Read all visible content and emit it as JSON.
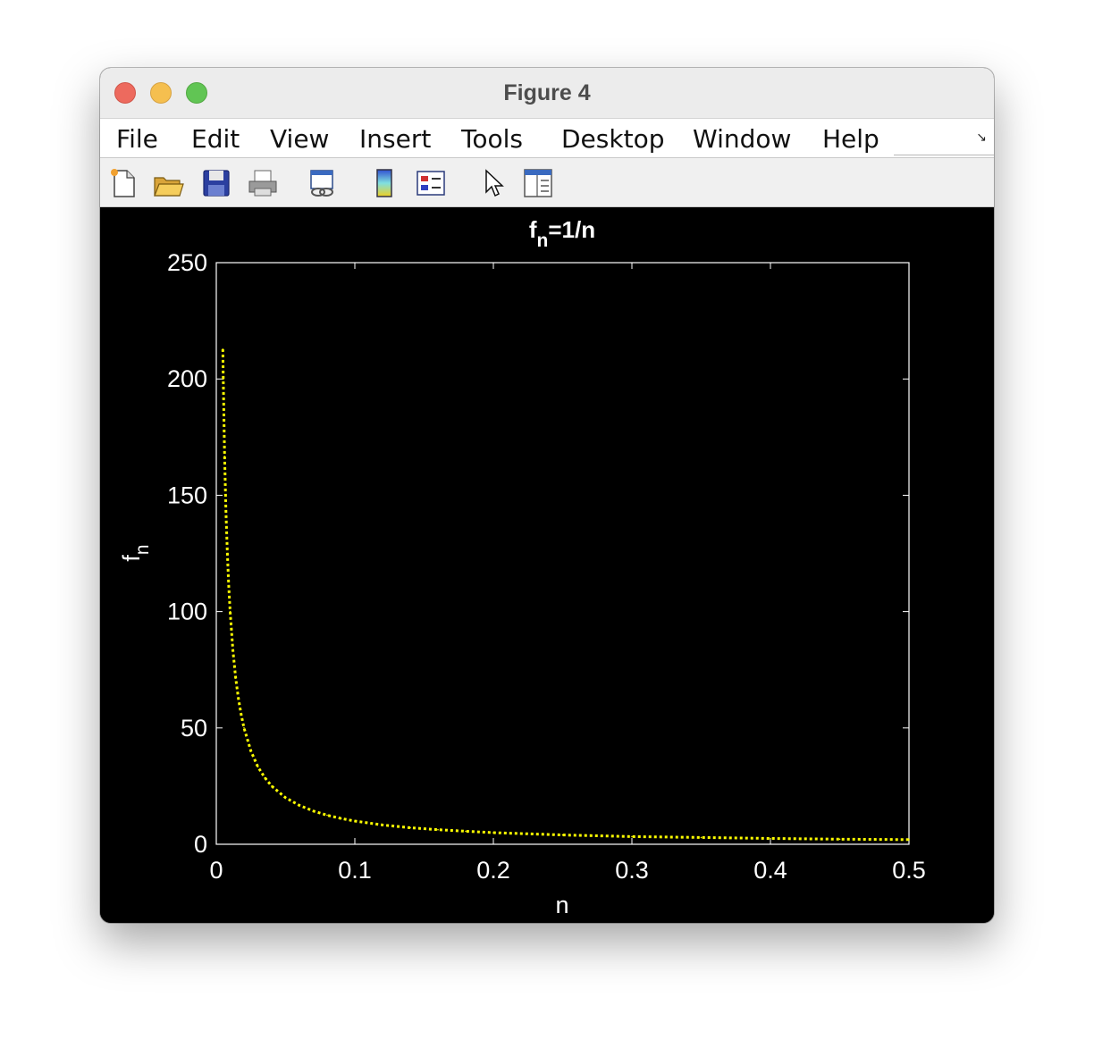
{
  "window": {
    "title": "Figure 4"
  },
  "menu": [
    "File",
    "Edit",
    "View",
    "Insert",
    "Tools",
    "Desktop",
    "Window",
    "Help"
  ],
  "toolbar": {
    "icons": [
      "new-figure-icon",
      "open-file-icon",
      "save-icon",
      "print-icon",
      "link-plot-icon",
      "colorbar-icon",
      "legend-icon",
      "pointer-icon",
      "property-editor-icon"
    ]
  },
  "colors": {
    "background": "#000000",
    "axes": "#ffffff",
    "series": "#ffff00"
  },
  "chart_data": {
    "type": "line",
    "title": {
      "base": "f",
      "sub": "n",
      "rest": "=1/n"
    },
    "xlabel": "n",
    "ylabel": {
      "base": "f",
      "sub": "n"
    },
    "xlim": [
      0,
      0.5
    ],
    "ylim": [
      0,
      250
    ],
    "xticks": [
      "0",
      "0.1",
      "0.2",
      "0.3",
      "0.4",
      "0.5"
    ],
    "yticks": [
      "0",
      "50",
      "100",
      "150",
      "200",
      "250"
    ],
    "line_style": "dotted",
    "grid": false,
    "x": [
      0.0047,
      0.005,
      0.006,
      0.007,
      0.008,
      0.009,
      0.01,
      0.012,
      0.014,
      0.016,
      0.018,
      0.02,
      0.025,
      0.03,
      0.035,
      0.04,
      0.05,
      0.06,
      0.07,
      0.08,
      0.09,
      0.1,
      0.12,
      0.14,
      0.16,
      0.18,
      0.2,
      0.25,
      0.3,
      0.35,
      0.4,
      0.45,
      0.5
    ],
    "y": [
      212.8,
      200,
      166.7,
      142.9,
      125,
      111.1,
      100,
      83.3,
      71.4,
      62.5,
      55.6,
      50,
      40,
      33.3,
      28.6,
      25,
      20,
      16.7,
      14.3,
      12.5,
      11.1,
      10,
      8.3,
      7.1,
      6.25,
      5.6,
      5,
      4,
      3.3,
      2.9,
      2.5,
      2.2,
      2
    ]
  }
}
